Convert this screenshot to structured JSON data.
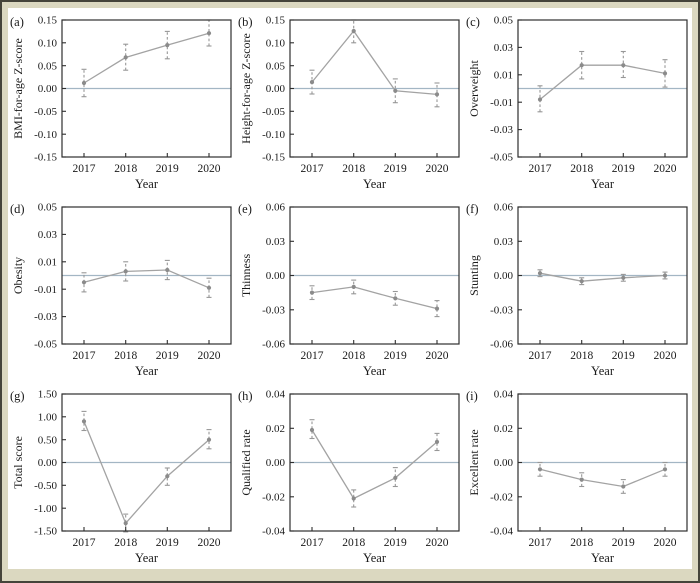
{
  "figure": {
    "xlabel": "Year",
    "years": [
      "2017",
      "2018",
      "2019",
      "2020"
    ],
    "colors": {
      "frame_background": "#dbd8c0",
      "frame_border": "#45443a",
      "plot_background": "#ffffff",
      "axis": "#2e2e2e",
      "line": "#a3a3a3",
      "marker": "#8b8b8b",
      "error_bar": "#979797",
      "zero_line": "#a3b6c4",
      "text": "#1a1a1a"
    }
  },
  "chart_data": [
    {
      "type": "line",
      "panel_label": "(a)",
      "ylabel": "BMI-for-age Z-score",
      "xlabel": "Year",
      "categories": [
        "2017",
        "2018",
        "2019",
        "2020"
      ],
      "values": [
        0.012,
        0.068,
        0.095,
        0.121
      ],
      "ci_low": [
        -0.018,
        0.04,
        0.065,
        0.093
      ],
      "ci_high": [
        0.042,
        0.097,
        0.125,
        0.15
      ],
      "ylim": [
        -0.15,
        0.15
      ],
      "ytick_values": [
        0.15,
        0.1,
        0.05,
        0.0,
        -0.05,
        -0.1,
        -0.15
      ],
      "ytick_labels": [
        "0.15",
        "0.10",
        "0.05",
        "0.00",
        "-0.05",
        "-0.10",
        "-0.15"
      ],
      "zero_line": true
    },
    {
      "type": "line",
      "panel_label": "(b)",
      "ylabel": "Height-for-age Z-score",
      "xlabel": "Year",
      "categories": [
        "2017",
        "2018",
        "2019",
        "2020"
      ],
      "values": [
        0.014,
        0.126,
        -0.005,
        -0.013
      ],
      "ci_low": [
        -0.012,
        0.1,
        -0.031,
        -0.04
      ],
      "ci_high": [
        0.04,
        0.15,
        0.021,
        0.012
      ],
      "ylim": [
        -0.15,
        0.15
      ],
      "ytick_values": [
        0.15,
        0.1,
        0.05,
        0.0,
        -0.05,
        -0.1,
        -0.15
      ],
      "ytick_labels": [
        "0.15",
        "0.10",
        "0.05",
        "0.00",
        "-0.05",
        "-0.10",
        "-0.15"
      ],
      "zero_line": true
    },
    {
      "type": "line",
      "panel_label": "(c)",
      "ylabel": "Overweight",
      "xlabel": "Year",
      "categories": [
        "2017",
        "2018",
        "2019",
        "2020"
      ],
      "values": [
        -0.008,
        0.017,
        0.017,
        0.011
      ],
      "ci_low": [
        -0.017,
        0.007,
        0.008,
        0.001
      ],
      "ci_high": [
        0.002,
        0.027,
        0.027,
        0.021
      ],
      "ylim": [
        -0.05,
        0.05
      ],
      "ytick_values": [
        0.05,
        0.03,
        0.01,
        -0.01,
        -0.03,
        -0.05
      ],
      "ytick_labels": [
        "0.05",
        "0.03",
        "0.01",
        "-0.01",
        "-0.03",
        "-0.05"
      ],
      "zero_line": true
    },
    {
      "type": "line",
      "panel_label": "(d)",
      "ylabel": "Obesity",
      "xlabel": "Year",
      "categories": [
        "2017",
        "2018",
        "2019",
        "2020"
      ],
      "values": [
        -0.005,
        0.003,
        0.004,
        -0.009
      ],
      "ci_low": [
        -0.012,
        -0.004,
        -0.003,
        -0.016
      ],
      "ci_high": [
        0.002,
        0.01,
        0.011,
        -0.002
      ],
      "ylim": [
        -0.05,
        0.05
      ],
      "ytick_values": [
        0.05,
        0.03,
        0.01,
        -0.01,
        -0.03,
        -0.05
      ],
      "ytick_labels": [
        "0.05",
        "0.03",
        "0.01",
        "-0.01",
        "-0.03",
        "-0.05"
      ],
      "zero_line": true
    },
    {
      "type": "line",
      "panel_label": "(e)",
      "ylabel": "Thinness",
      "xlabel": "Year",
      "categories": [
        "2017",
        "2018",
        "2019",
        "2020"
      ],
      "values": [
        -0.015,
        -0.01,
        -0.02,
        -0.029
      ],
      "ci_low": [
        -0.021,
        -0.016,
        -0.026,
        -0.036
      ],
      "ci_high": [
        -0.009,
        -0.004,
        -0.014,
        -0.022
      ],
      "ylim": [
        -0.06,
        0.06
      ],
      "ytick_values": [
        0.06,
        0.03,
        0.0,
        -0.03,
        -0.06
      ],
      "ytick_labels": [
        "0.06",
        "0.03",
        "0.00",
        "-0.03",
        "-0.06"
      ],
      "zero_line": true
    },
    {
      "type": "line",
      "panel_label": "(f)",
      "ylabel": "Stunting",
      "xlabel": "Year",
      "categories": [
        "2017",
        "2018",
        "2019",
        "2020"
      ],
      "values": [
        0.002,
        -0.005,
        -0.002,
        0.0
      ],
      "ci_low": [
        -0.001,
        -0.008,
        -0.005,
        -0.003
      ],
      "ci_high": [
        0.005,
        -0.002,
        0.001,
        0.003
      ],
      "ylim": [
        -0.06,
        0.06
      ],
      "ytick_values": [
        0.06,
        0.03,
        0.0,
        -0.03,
        -0.06
      ],
      "ytick_labels": [
        "0.06",
        "0.03",
        "0.00",
        "-0.03",
        "-0.06"
      ],
      "zero_line": true
    },
    {
      "type": "line",
      "panel_label": "(g)",
      "ylabel": "Total score",
      "xlabel": "Year",
      "categories": [
        "2017",
        "2018",
        "2019",
        "2020"
      ],
      "values": [
        0.9,
        -1.33,
        -0.3,
        0.5
      ],
      "ci_low": [
        0.7,
        -1.52,
        -0.5,
        0.3
      ],
      "ci_high": [
        1.12,
        -1.13,
        -0.12,
        0.72
      ],
      "ylim": [
        -1.5,
        1.5
      ],
      "ytick_values": [
        1.5,
        1.0,
        0.5,
        0.0,
        -0.5,
        -1.0,
        -1.5
      ],
      "ytick_labels": [
        "1.50",
        "1.00",
        "0.50",
        "0.00",
        "-0.50",
        "-1.00",
        "-1.50"
      ],
      "zero_line": true
    },
    {
      "type": "line",
      "panel_label": "(h)",
      "ylabel": "Qualified rate",
      "xlabel": "Year",
      "categories": [
        "2017",
        "2018",
        "2019",
        "2020"
      ],
      "values": [
        0.019,
        -0.021,
        -0.009,
        0.012
      ],
      "ci_low": [
        0.014,
        -0.026,
        -0.014,
        0.007
      ],
      "ci_high": [
        0.025,
        -0.016,
        -0.003,
        0.017
      ],
      "ylim": [
        -0.04,
        0.04
      ],
      "ytick_values": [
        0.04,
        0.02,
        0.0,
        -0.02,
        -0.04
      ],
      "ytick_labels": [
        "0.04",
        "0.02",
        "0.00",
        "-0.02",
        "-0.04"
      ],
      "zero_line": true
    },
    {
      "type": "line",
      "panel_label": "(i)",
      "ylabel": "Excellent rate",
      "xlabel": "Year",
      "categories": [
        "2017",
        "2018",
        "2019",
        "2020"
      ],
      "values": [
        -0.004,
        -0.01,
        -0.014,
        -0.004
      ],
      "ci_low": [
        -0.008,
        -0.014,
        -0.018,
        -0.008
      ],
      "ci_high": [
        0.0,
        -0.006,
        -0.01,
        0.0
      ],
      "ylim": [
        -0.04,
        0.04
      ],
      "ytick_values": [
        0.04,
        0.02,
        0.0,
        -0.02,
        -0.04
      ],
      "ytick_labels": [
        "0.04",
        "0.02",
        "0.00",
        "-0.02",
        "-0.04"
      ],
      "zero_line": true
    }
  ]
}
